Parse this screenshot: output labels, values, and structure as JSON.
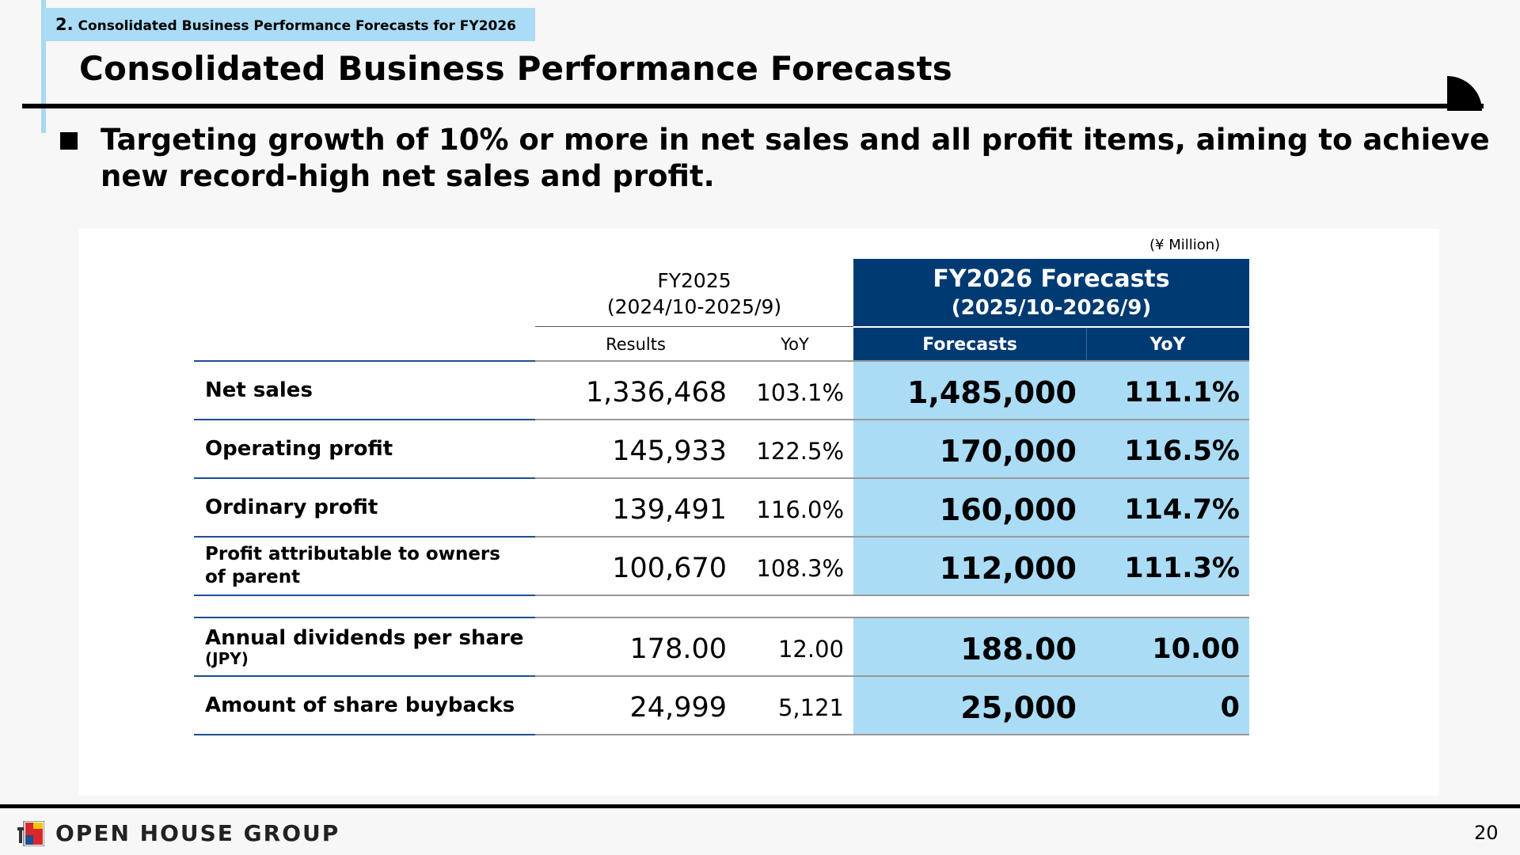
{
  "header": {
    "section_number": "2.",
    "section_title": "Consolidated Business Performance Forecasts for FY2026",
    "title": "Consolidated Business Performance Forecasts"
  },
  "lead": {
    "text": "Targeting growth of 10% or more in net sales and all profit items, aiming to achieve new record-high net sales and profit."
  },
  "table": {
    "unit": "(¥ Million)",
    "fy2025_label": "FY2025",
    "fy2025_period": "(2024/10-2025/9)",
    "fy2026_label": "FY2026 Forecasts",
    "fy2026_period": "(2025/10-2026/9)",
    "col_results": "Results",
    "col_yoy": "YoY",
    "col_forecasts": "Forecasts",
    "col_forecast_yoy": "YoY",
    "rows": [
      {
        "label": "Net sales",
        "label_sub": "",
        "results": "1,336,468",
        "yoy": "103.1%",
        "forecast": "1,485,000",
        "forecast_yoy": "111.1%"
      },
      {
        "label": "Operating profit",
        "label_sub": "",
        "results": "145,933",
        "yoy": "122.5%",
        "forecast": "170,000",
        "forecast_yoy": "116.5%"
      },
      {
        "label": "Ordinary profit",
        "label_sub": "",
        "results": "139,491",
        "yoy": "116.0%",
        "forecast": "160,000",
        "forecast_yoy": "114.7%"
      },
      {
        "label": "Profit attributable to owners of parent",
        "label_sub": "",
        "results": "100,670",
        "yoy": "108.3%",
        "forecast": "112,000",
        "forecast_yoy": "111.3%"
      },
      {
        "label": "Annual dividends per share",
        "label_sub": "(JPY)",
        "results": "178.00",
        "yoy": "12.00",
        "forecast": "188.00",
        "forecast_yoy": "10.00"
      },
      {
        "label": "Amount of share buybacks",
        "label_sub": "",
        "results": "24,999",
        "yoy": "5,121",
        "forecast": "25,000",
        "forecast_yoy": "0"
      }
    ]
  },
  "footer": {
    "company": "OPEN HOUSE GROUP",
    "page_number": "20"
  },
  "colors": {
    "navy": "#003a73",
    "light_blue": "#abdcf6",
    "rule_blue": "#1d4f91"
  }
}
